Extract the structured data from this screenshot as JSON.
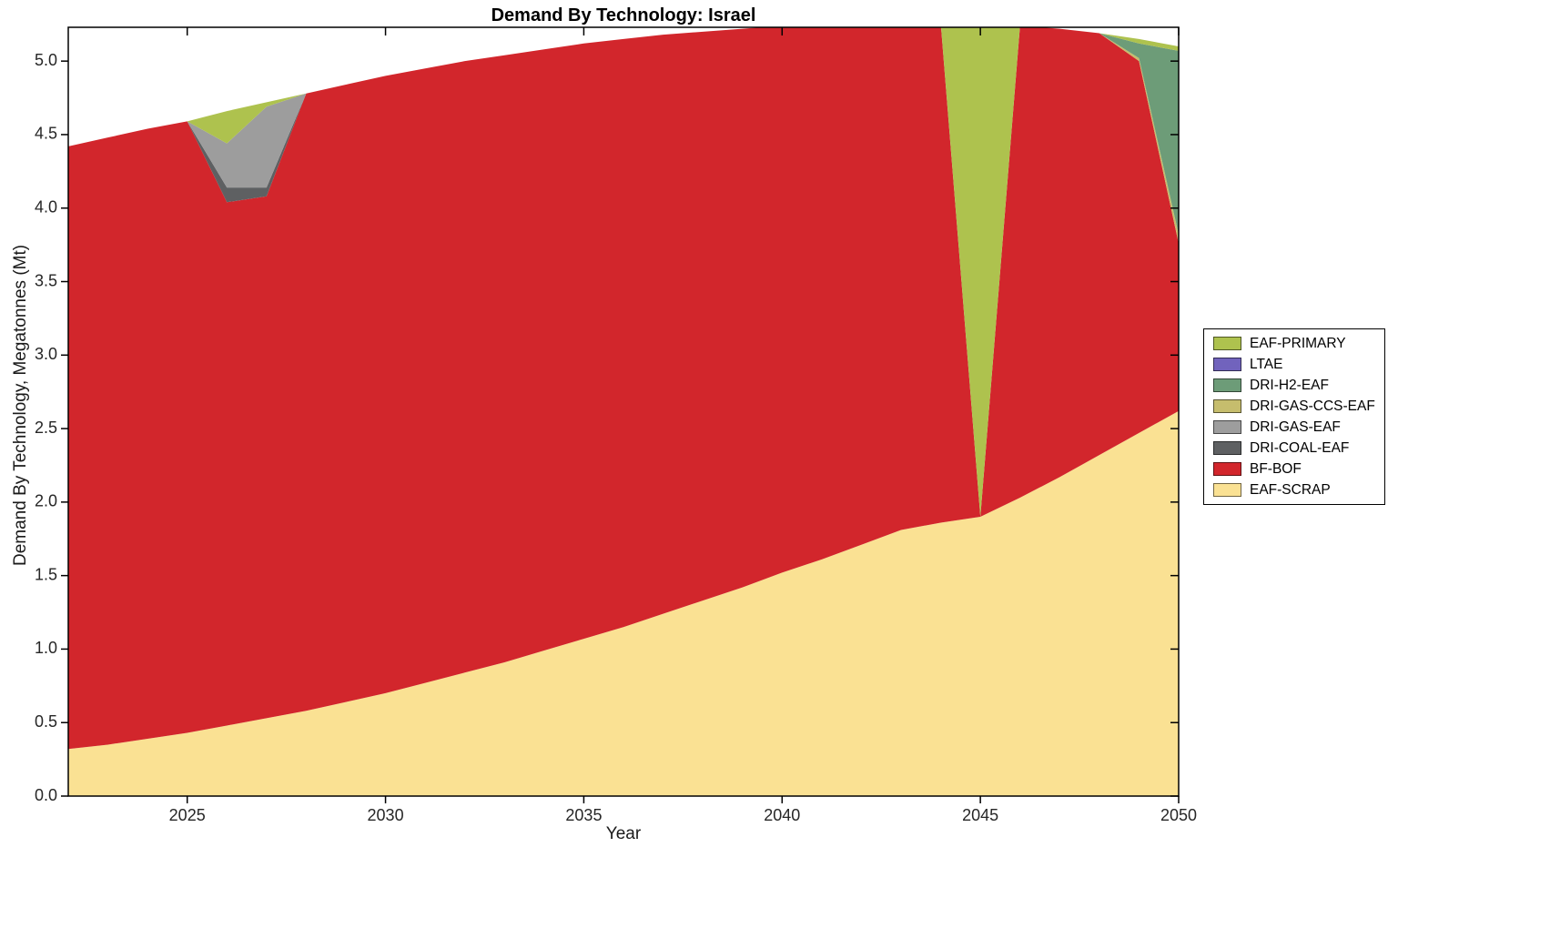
{
  "figure": {
    "background": "#ffffff"
  },
  "chart_data": {
    "type": "area",
    "stacked": true,
    "title": "Demand By Technology: Israel",
    "xlabel": "Year",
    "ylabel": "Demand By Technology, Megatonnes (Mt)",
    "xlim": [
      2022,
      2050
    ],
    "ylim": [
      0,
      5.23
    ],
    "grid": false,
    "legend_position": "right-outside",
    "x_ticks": [
      2025,
      2030,
      2035,
      2040,
      2045,
      2050
    ],
    "y_ticks": [
      0.0,
      0.5,
      1.0,
      1.5,
      2.0,
      2.5,
      3.0,
      3.5,
      4.0,
      4.5,
      5.0
    ],
    "x": [
      2022,
      2023,
      2024,
      2025,
      2026,
      2027,
      2028,
      2029,
      2030,
      2031,
      2032,
      2033,
      2034,
      2035,
      2036,
      2037,
      2038,
      2039,
      2040,
      2041,
      2042,
      2043,
      2044,
      2045,
      2046,
      2047,
      2048,
      2049,
      2050
    ],
    "series": [
      {
        "name": "EAF-SCRAP",
        "color": "#fae193",
        "values": [
          0.32,
          0.35,
          0.39,
          0.43,
          0.48,
          0.53,
          0.58,
          0.64,
          0.7,
          0.77,
          0.84,
          0.91,
          0.99,
          1.07,
          1.15,
          1.24,
          1.33,
          1.42,
          1.52,
          1.61,
          1.71,
          1.81,
          1.86,
          1.9,
          2.03,
          2.17,
          2.32,
          2.47,
          2.62
        ]
      },
      {
        "name": "BF-BOF",
        "color": "#d2262c",
        "values": [
          4.1,
          4.13,
          4.15,
          4.16,
          3.56,
          3.55,
          4.2,
          4.2,
          4.2,
          4.18,
          4.16,
          4.13,
          4.09,
          4.05,
          4.0,
          3.94,
          3.87,
          3.8,
          3.72,
          3.64,
          3.55,
          3.45,
          3.4,
          0.0,
          3.21,
          3.05,
          2.87,
          2.53,
          1.14
        ]
      },
      {
        "name": "DRI-COAL-EAF",
        "color": "#5e6062",
        "values": [
          0,
          0,
          0,
          0,
          0.1,
          0.06,
          0,
          0,
          0,
          0,
          0,
          0,
          0,
          0,
          0,
          0,
          0,
          0,
          0,
          0,
          0,
          0,
          0,
          0,
          0,
          0,
          0,
          0,
          0
        ]
      },
      {
        "name": "DRI-GAS-EAF",
        "color": "#9d9d9d",
        "values": [
          0,
          0,
          0,
          0,
          0.3,
          0.55,
          0,
          0,
          0,
          0,
          0,
          0,
          0,
          0,
          0,
          0,
          0,
          0,
          0,
          0,
          0,
          0,
          0,
          0,
          0,
          0,
          0,
          0,
          0
        ]
      },
      {
        "name": "DRI-GAS-CCS-EAF",
        "color": "#c6bd6d",
        "values": [
          0,
          0,
          0,
          0,
          0,
          0,
          0,
          0,
          0,
          0,
          0,
          0,
          0,
          0,
          0,
          0,
          0,
          0,
          0,
          0,
          0,
          0,
          0,
          0,
          0,
          0,
          0,
          0.02,
          0.06
        ]
      },
      {
        "name": "DRI-H2-EAF",
        "color": "#6d9c78",
        "values": [
          0,
          0,
          0,
          0,
          0,
          0,
          0,
          0,
          0,
          0,
          0,
          0,
          0,
          0,
          0,
          0,
          0,
          0,
          0,
          0,
          0,
          0,
          0,
          0,
          0,
          0,
          0,
          0.1,
          1.25
        ]
      },
      {
        "name": "LTAE",
        "color": "#7163bd",
        "values": [
          0,
          0,
          0,
          0,
          0,
          0,
          0,
          0,
          0,
          0,
          0,
          0,
          0,
          0,
          0,
          0,
          0,
          0,
          0,
          0,
          0,
          0,
          0,
          0,
          0,
          0,
          0,
          0,
          0
        ]
      },
      {
        "name": "EAF-PRIMARY",
        "color": "#aec24e",
        "values": [
          0,
          0,
          0,
          0,
          0.22,
          0.03,
          0,
          0,
          0,
          0,
          0,
          0,
          0,
          0,
          0,
          0,
          0,
          0,
          0,
          0,
          0,
          0,
          0,
          3.35,
          0,
          0,
          0,
          0.03,
          0.03
        ]
      }
    ],
    "legend_entries_top_to_bottom": [
      "EAF-PRIMARY",
      "LTAE",
      "DRI-H2-EAF",
      "DRI-GAS-CCS-EAF",
      "DRI-GAS-EAF",
      "DRI-COAL-EAF",
      "BF-BOF",
      "EAF-SCRAP"
    ]
  }
}
